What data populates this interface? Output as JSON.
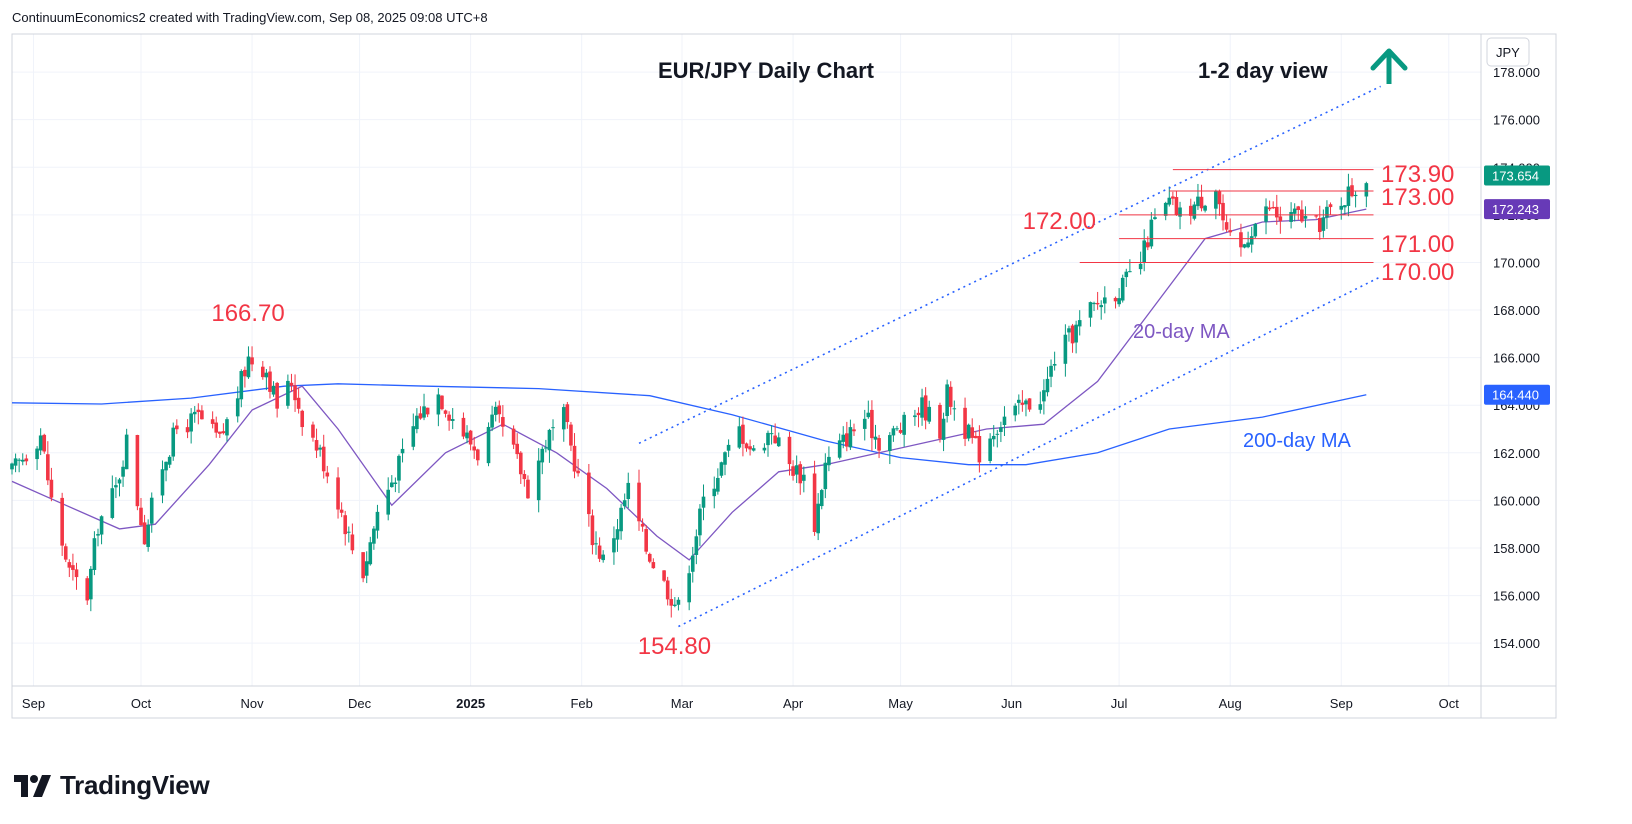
{
  "header": {
    "attribution": "ContinuumEconomics2 created with TradingView.com, Sep 08, 2025 09:08 UTC+8"
  },
  "footer": {
    "brand": "TradingView"
  },
  "chart_data": {
    "type": "candlestick",
    "title": "EUR/JPY Daily Chart",
    "view_label": "1-2 day view",
    "view_direction": "up",
    "currency": "JPY",
    "y_range": [
      152.2,
      179.6
    ],
    "y_ticks": [
      "154.000",
      "156.000",
      "158.000",
      "160.000",
      "162.000",
      "164.000",
      "166.000",
      "168.000",
      "170.000",
      "172.000",
      "174.000",
      "176.000",
      "178.000"
    ],
    "y_tick_values": [
      154,
      156,
      158,
      160,
      162,
      164,
      166,
      168,
      170,
      172,
      174,
      176,
      178
    ],
    "x_range": [
      "2024-08-26",
      "2025-10-10"
    ],
    "x_ticks": [
      {
        "label": "Sep",
        "date": "2024-09-01",
        "bold": false
      },
      {
        "label": "Oct",
        "date": "2024-10-01",
        "bold": false
      },
      {
        "label": "Nov",
        "date": "2024-11-01",
        "bold": false
      },
      {
        "label": "Dec",
        "date": "2024-12-01",
        "bold": false
      },
      {
        "label": "2025",
        "date": "2025-01-01",
        "bold": true
      },
      {
        "label": "Feb",
        "date": "2025-02-01",
        "bold": false
      },
      {
        "label": "Mar",
        "date": "2025-03-01",
        "bold": false
      },
      {
        "label": "Apr",
        "date": "2025-04-01",
        "bold": false
      },
      {
        "label": "May",
        "date": "2025-05-01",
        "bold": false
      },
      {
        "label": "Jun",
        "date": "2025-06-01",
        "bold": false
      },
      {
        "label": "Jul",
        "date": "2025-07-01",
        "bold": false
      },
      {
        "label": "Aug",
        "date": "2025-08-01",
        "bold": false
      },
      {
        "label": "Sep",
        "date": "2025-09-01",
        "bold": false
      },
      {
        "label": "Oct",
        "date": "2025-10-01",
        "bold": false
      }
    ],
    "close_path": [
      [
        "2024-08-26",
        161.2
      ],
      [
        "2024-09-03",
        162.8
      ],
      [
        "2024-09-06",
        160.0
      ],
      [
        "2024-09-11",
        157.0
      ],
      [
        "2024-09-16",
        156.0
      ],
      [
        "2024-09-19",
        159.0
      ],
      [
        "2024-09-24",
        160.5
      ],
      [
        "2024-09-27",
        162.5
      ],
      [
        "2024-09-30",
        160.0
      ],
      [
        "2024-10-02",
        158.5
      ],
      [
        "2024-10-07",
        161.5
      ],
      [
        "2024-10-11",
        163.0
      ],
      [
        "2024-10-17",
        163.5
      ],
      [
        "2024-10-23",
        162.5
      ],
      [
        "2024-10-28",
        164.5
      ],
      [
        "2024-10-31",
        166.0
      ],
      [
        "2024-11-05",
        165.5
      ],
      [
        "2024-11-08",
        164.0
      ],
      [
        "2024-11-12",
        165.0
      ],
      [
        "2024-11-15",
        163.5
      ],
      [
        "2024-11-20",
        162.0
      ],
      [
        "2024-11-25",
        160.0
      ],
      [
        "2024-11-29",
        158.0
      ],
      [
        "2024-12-02",
        157.0
      ],
      [
        "2024-12-06",
        159.5
      ],
      [
        "2024-12-12",
        161.5
      ],
      [
        "2024-12-17",
        163.5
      ],
      [
        "2024-12-23",
        164.5
      ],
      [
        "2024-12-27",
        163.5
      ],
      [
        "2025-01-03",
        162.0
      ],
      [
        "2025-01-08",
        163.5
      ],
      [
        "2025-01-13",
        162.0
      ],
      [
        "2025-01-17",
        160.5
      ],
      [
        "2025-01-22",
        162.5
      ],
      [
        "2025-01-27",
        163.5
      ],
      [
        "2025-01-31",
        161.0
      ],
      [
        "2025-02-04",
        158.5
      ],
      [
        "2025-02-07",
        157.5
      ],
      [
        "2025-02-11",
        159.0
      ],
      [
        "2025-02-14",
        160.5
      ],
      [
        "2025-02-19",
        158.0
      ],
      [
        "2025-02-24",
        156.5
      ],
      [
        "2025-02-28",
        155.5
      ],
      [
        "2025-03-04",
        158.0
      ],
      [
        "2025-03-07",
        160.0
      ],
      [
        "2025-03-12",
        161.5
      ],
      [
        "2025-03-17",
        163.0
      ],
      [
        "2025-03-21",
        162.0
      ],
      [
        "2025-03-26",
        163.0
      ],
      [
        "2025-03-31",
        161.5
      ],
      [
        "2025-04-04",
        161.0
      ],
      [
        "2025-04-07",
        159.0
      ],
      [
        "2025-04-10",
        161.5
      ],
      [
        "2025-04-15",
        162.5
      ],
      [
        "2025-04-21",
        163.5
      ],
      [
        "2025-04-25",
        162.5
      ],
      [
        "2025-05-01",
        163.0
      ],
      [
        "2025-05-07",
        164.0
      ],
      [
        "2025-05-12",
        163.0
      ],
      [
        "2025-05-14",
        164.5
      ],
      [
        "2025-05-19",
        163.0
      ],
      [
        "2025-05-23",
        162.0
      ],
      [
        "2025-05-27",
        163.0
      ],
      [
        "2025-05-30",
        163.5
      ],
      [
        "2025-06-05",
        164.0
      ],
      [
        "2025-06-10",
        164.5
      ],
      [
        "2025-06-13",
        166.0
      ],
      [
        "2025-06-18",
        167.0
      ],
      [
        "2025-06-23",
        168.0
      ],
      [
        "2025-06-27",
        168.5
      ],
      [
        "2025-07-02",
        169.0
      ],
      [
        "2025-07-07",
        170.0
      ],
      [
        "2025-07-10",
        171.5
      ],
      [
        "2025-07-15",
        172.5
      ],
      [
        "2025-07-18",
        172.0
      ],
      [
        "2025-07-23",
        172.5
      ],
      [
        "2025-07-28",
        173.2
      ],
      [
        "2025-07-31",
        171.0
      ],
      [
        "2025-08-04",
        170.5
      ],
      [
        "2025-08-07",
        171.5
      ],
      [
        "2025-08-12",
        172.3
      ],
      [
        "2025-08-15",
        171.8
      ],
      [
        "2025-08-20",
        172.0
      ],
      [
        "2025-08-25",
        171.5
      ],
      [
        "2025-08-28",
        172.0
      ],
      [
        "2025-09-02",
        172.8
      ],
      [
        "2025-09-05",
        173.1
      ],
      [
        "2025-09-08",
        173.654
      ]
    ],
    "ma20": [
      [
        "2024-08-26",
        160.8
      ],
      [
        "2024-09-10",
        159.8
      ],
      [
        "2024-09-25",
        158.8
      ],
      [
        "2024-10-05",
        159.0
      ],
      [
        "2024-10-20",
        161.5
      ],
      [
        "2024-11-01",
        163.8
      ],
      [
        "2024-11-15",
        164.8
      ],
      [
        "2024-11-25",
        163.0
      ],
      [
        "2024-12-10",
        159.8
      ],
      [
        "2024-12-25",
        162.0
      ],
      [
        "2025-01-10",
        163.2
      ],
      [
        "2025-01-25",
        162.0
      ],
      [
        "2025-02-08",
        160.5
      ],
      [
        "2025-02-22",
        158.5
      ],
      [
        "2025-03-03",
        157.5
      ],
      [
        "2025-03-15",
        159.5
      ],
      [
        "2025-03-28",
        161.2
      ],
      [
        "2025-04-10",
        161.5
      ],
      [
        "2025-04-25",
        162.0
      ],
      [
        "2025-05-10",
        162.5
      ],
      [
        "2025-05-25",
        163.0
      ],
      [
        "2025-06-10",
        163.2
      ],
      [
        "2025-06-25",
        165.0
      ],
      [
        "2025-07-10",
        168.0
      ],
      [
        "2025-07-25",
        171.0
      ],
      [
        "2025-08-10",
        171.7
      ],
      [
        "2025-08-25",
        171.8
      ],
      [
        "2025-09-08",
        172.243
      ]
    ],
    "ma200": [
      [
        "2024-08-26",
        164.1
      ],
      [
        "2024-09-20",
        164.05
      ],
      [
        "2024-10-15",
        164.3
      ],
      [
        "2024-11-10",
        164.8
      ],
      [
        "2024-11-25",
        164.9
      ],
      [
        "2024-12-20",
        164.8
      ],
      [
        "2025-01-20",
        164.7
      ],
      [
        "2025-02-20",
        164.4
      ],
      [
        "2025-03-15",
        163.6
      ],
      [
        "2025-04-10",
        162.5
      ],
      [
        "2025-05-01",
        161.8
      ],
      [
        "2025-05-20",
        161.5
      ],
      [
        "2025-06-05",
        161.5
      ],
      [
        "2025-06-25",
        162.0
      ],
      [
        "2025-07-15",
        163.0
      ],
      [
        "2025-08-10",
        163.5
      ],
      [
        "2025-09-08",
        164.44
      ]
    ],
    "labels": {
      "ma20": "20-day MA",
      "ma200": "200-day MA"
    },
    "levels": [
      {
        "label": "173.90",
        "value": 173.9,
        "from": "2025-07-16",
        "to": "2025-09-10"
      },
      {
        "label": "173.00",
        "value": 173.0,
        "from": "2025-07-15",
        "to": "2025-09-10"
      },
      {
        "label": "172.00",
        "value": 172.0,
        "from": "2025-07-01",
        "to": "2025-09-10"
      },
      {
        "label": "171.00",
        "value": 171.0,
        "from": "2025-07-01",
        "to": "2025-09-10"
      },
      {
        "label": "170.00",
        "value": 170.0,
        "from": "2025-06-20",
        "to": "2025-09-10"
      }
    ],
    "extremes": [
      {
        "label": "166.70",
        "value": 166.7,
        "date": "2024-11-01",
        "pos": "above"
      },
      {
        "label": "154.80",
        "value": 154.8,
        "date": "2025-02-28",
        "pos": "below"
      }
    ],
    "channel": [
      {
        "name": "upper",
        "from": [
          "2025-02-17",
          162.4
        ],
        "to": [
          "2025-09-12",
          177.4
        ]
      },
      {
        "name": "lower",
        "from": [
          "2025-02-28",
          154.7
        ],
        "to": [
          "2025-09-12",
          169.4
        ]
      }
    ],
    "price_tags": [
      {
        "label": "173.654",
        "value": 173.654,
        "bg": "#089981",
        "fg": "#ffffff"
      },
      {
        "label": "172.243",
        "value": 172.243,
        "bg": "#673ab7",
        "fg": "#ffffff"
      },
      {
        "label": "164.440",
        "value": 164.44,
        "bg": "#2962ff",
        "fg": "#ffffff"
      }
    ],
    "colors": {
      "up": "#089981",
      "down": "#f23645",
      "ma20": "#7e57c2",
      "ma200": "#2962ff",
      "channel": "#2962ff",
      "level": "#f23645",
      "annotation": "#f23645",
      "arrow": "#089981"
    }
  }
}
